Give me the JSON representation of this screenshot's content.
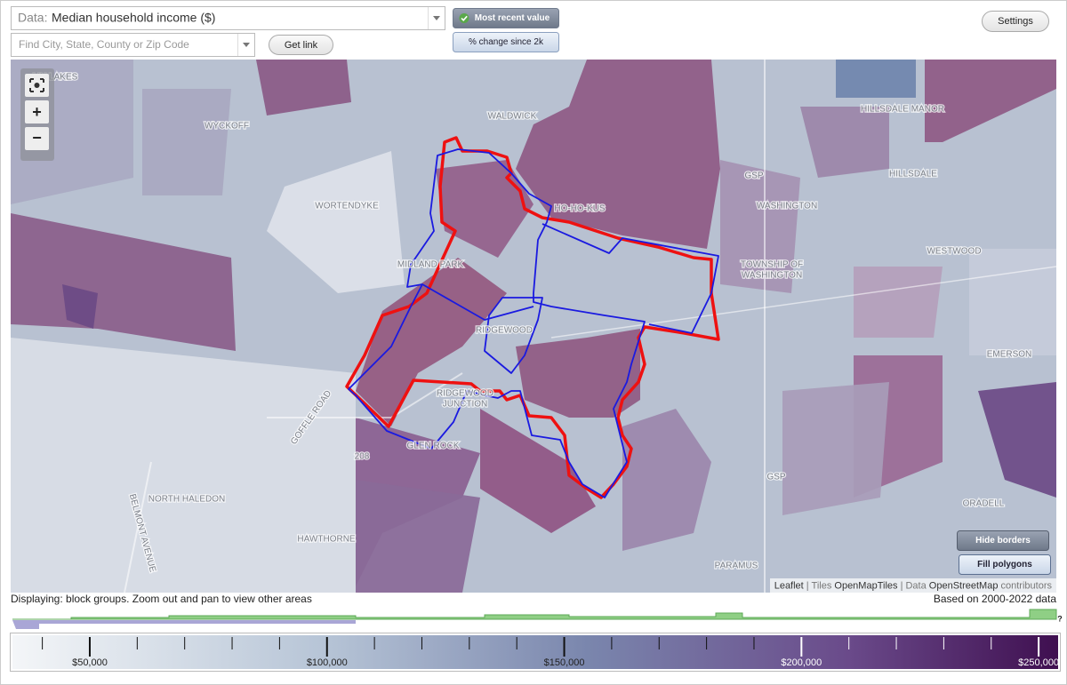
{
  "header": {
    "data_label": "Data:",
    "data_value": "Median household income ($)",
    "search_placeholder": "Find City, State, County or Zip Code",
    "get_link": "Get link",
    "most_recent": "Most recent value",
    "change": "% change since 2k",
    "settings": "Settings"
  },
  "map": {
    "zoom": [
      "+",
      "−"
    ],
    "labels": [
      "LIN LAKES",
      "WYCKOFF",
      "WALDWICK",
      "HILLSDALE MANOR",
      "HILLSDALE",
      "GSP",
      "WASHINGTON",
      "HO-HO-KUS",
      "WORTENDYKE",
      "TOWNSHIP OF",
      "WASHINGTON",
      "WESTWOOD",
      "MIDLAND PARK",
      "RIDGEWOOD",
      "EMERSON",
      "RIDGEWOOD",
      "JUNCTION",
      "GLEN ROCK",
      "208",
      "NORTH HALEDON",
      "HAWTHORNE",
      "GSP",
      "PARAMUS",
      "ORADELL",
      "GOFFLE ROAD",
      "BELMONT AVENUE"
    ],
    "hide_borders": "Hide borders",
    "fill_polygons": "Fill polygons",
    "attribution": {
      "leaflet": "Leaflet",
      "tiles_label": "| Tiles",
      "tiles": "OpenMapTiles",
      "data_label": "| Data",
      "data": "OpenStreetMap",
      "contributors": "contributors"
    }
  },
  "status": {
    "displaying": "Displaying: block groups. Zoom out and pan to view other areas",
    "based_on": "Based on 2000-2022 data",
    "help": "?"
  },
  "legend": {
    "range": [
      33700,
      254100
    ],
    "ticks": [
      {
        "value": 50000,
        "label": "$50,000"
      },
      {
        "value": 100000,
        "label": "$100,000"
      },
      {
        "value": 150000,
        "label": "$150,000"
      },
      {
        "value": 200000,
        "label": "$200,000"
      },
      {
        "value": 250000,
        "label": "$250,000"
      }
    ],
    "minor_ticks": [
      40000,
      60000,
      70000,
      80000,
      90000,
      110000,
      120000,
      130000,
      140000,
      160000,
      170000,
      180000,
      190000,
      210000,
      220000,
      230000,
      240000
    ]
  }
}
